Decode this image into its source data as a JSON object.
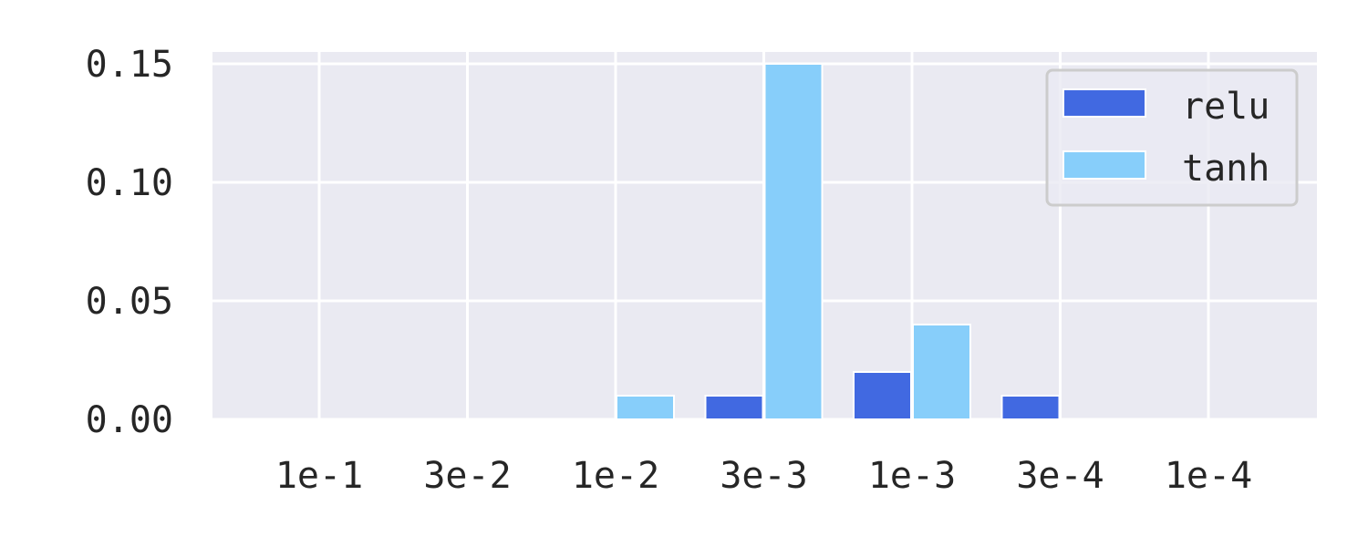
{
  "chart_data": {
    "type": "bar",
    "categories": [
      "1e-1",
      "3e-2",
      "1e-2",
      "3e-3",
      "1e-3",
      "3e-4",
      "1e-4"
    ],
    "series": [
      {
        "name": "relu",
        "color": "#4169e1",
        "values": [
          0,
          0,
          0,
          0.01,
          0.02,
          0.01,
          0
        ]
      },
      {
        "name": "tanh",
        "color": "#87cefa",
        "values": [
          0,
          0,
          0.01,
          0.15,
          0.04,
          0,
          0
        ]
      }
    ],
    "ylim": [
      0,
      0.155
    ],
    "yticks": [
      "0.00",
      "0.05",
      "0.10",
      "0.15"
    ],
    "title": "",
    "xlabel": "",
    "ylabel": "",
    "grid": true,
    "legend_position": "top-right",
    "plot_background": "#eaeaf2"
  }
}
